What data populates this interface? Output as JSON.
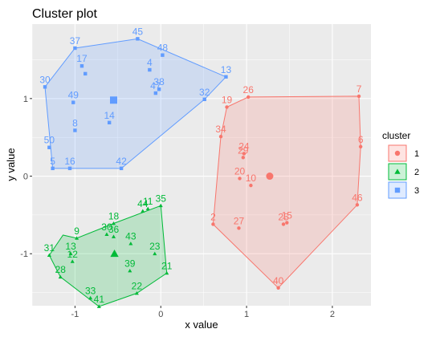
{
  "chart_data": {
    "type": "scatter",
    "title": "Cluster plot",
    "xlabel": "x value",
    "ylabel": "y value",
    "xlim": [
      -1.5,
      2.45
    ],
    "ylim": [
      -1.67,
      1.96
    ],
    "x_ticks": [
      -1,
      0,
      1,
      2
    ],
    "y_ticks": [
      -1,
      0,
      1
    ],
    "grid": true,
    "legend": {
      "title": "cluster",
      "placement": "right",
      "entries": [
        {
          "label": "1",
          "color": "#F8766D",
          "shape": "circle"
        },
        {
          "label": "2",
          "color": "#00BA38",
          "shape": "triangle"
        },
        {
          "label": "3",
          "color": "#619CFF",
          "shape": "square"
        }
      ]
    },
    "clusters": [
      {
        "name": "1",
        "color": "#F8766D",
        "shape": "circle",
        "centroid": [
          1.27,
          0.0
        ],
        "hull": [
          [
            0.77,
            0.89
          ],
          [
            1.02,
            1.02
          ],
          [
            2.31,
            1.03
          ],
          [
            2.33,
            0.38
          ],
          [
            2.29,
            -0.37
          ],
          [
            1.37,
            -1.44
          ],
          [
            0.61,
            -0.62
          ],
          [
            0.7,
            0.51
          ]
        ],
        "points": [
          {
            "label": "2",
            "x": 0.61,
            "y": -0.62
          },
          {
            "label": "6",
            "x": 2.33,
            "y": 0.38
          },
          {
            "label": "7",
            "x": 2.31,
            "y": 1.03
          },
          {
            "label": "10",
            "x": 1.05,
            "y": -0.12
          },
          {
            "label": "15",
            "x": 1.47,
            "y": -0.6
          },
          {
            "label": "19",
            "x": 0.77,
            "y": 0.89
          },
          {
            "label": "20",
            "x": 0.92,
            "y": -0.03
          },
          {
            "label": "24",
            "x": 0.97,
            "y": 0.29
          },
          {
            "label": "25",
            "x": 1.43,
            "y": -0.62
          },
          {
            "label": "26",
            "x": 1.02,
            "y": 1.02
          },
          {
            "label": "27",
            "x": 0.91,
            "y": -0.67
          },
          {
            "label": "29",
            "x": 0.96,
            "y": 0.24
          },
          {
            "label": "34",
            "x": 0.7,
            "y": 0.51
          },
          {
            "label": "40",
            "x": 1.37,
            "y": -1.44
          },
          {
            "label": "46",
            "x": 2.29,
            "y": -0.37
          }
        ]
      },
      {
        "name": "2",
        "color": "#00BA38",
        "shape": "triangle",
        "centroid": [
          -0.54,
          -1.0
        ],
        "hull": [
          [
            -1.3,
            -1.02
          ],
          [
            -1.14,
            -0.76
          ],
          [
            -0.98,
            -0.8
          ],
          [
            -0.55,
            -0.61
          ],
          [
            0.0,
            -0.38
          ],
          [
            0.07,
            -1.25
          ],
          [
            -0.28,
            -1.51
          ],
          [
            -0.72,
            -1.68
          ],
          [
            -1.17,
            -1.3
          ]
        ],
        "points": [
          {
            "label": "9",
            "x": -0.98,
            "y": -0.8
          },
          {
            "label": "11",
            "x": -0.15,
            "y": -0.42
          },
          {
            "label": "12",
            "x": -1.03,
            "y": -1.1
          },
          {
            "label": "13",
            "x": -1.05,
            "y": -1.0
          },
          {
            "label": "18",
            "x": -0.55,
            "y": -0.61
          },
          {
            "label": "21",
            "x": 0.07,
            "y": -1.25
          },
          {
            "label": "22",
            "x": -0.28,
            "y": -1.51
          },
          {
            "label": "23",
            "x": -0.07,
            "y": -1.0
          },
          {
            "label": "28",
            "x": -1.17,
            "y": -1.3
          },
          {
            "label": "30",
            "x": -0.63,
            "y": -0.75
          },
          {
            "label": "31",
            "x": -1.3,
            "y": -1.02
          },
          {
            "label": "33",
            "x": -0.82,
            "y": -1.57
          },
          {
            "label": "35",
            "x": 0.0,
            "y": -0.38
          },
          {
            "label": "36",
            "x": -0.55,
            "y": -0.78
          },
          {
            "label": "39",
            "x": -0.36,
            "y": -1.22
          },
          {
            "label": "41",
            "x": -0.72,
            "y": -1.68
          },
          {
            "label": "43",
            "x": -0.35,
            "y": -0.87
          },
          {
            "label": "44",
            "x": -0.21,
            "y": -0.45
          }
        ]
      },
      {
        "name": "3",
        "color": "#619CFF",
        "shape": "square",
        "centroid": [
          -0.55,
          0.98
        ],
        "hull": [
          [
            -1.35,
            1.15
          ],
          [
            -1.0,
            1.65
          ],
          [
            -0.27,
            1.77
          ],
          [
            0.76,
            1.28
          ],
          [
            0.51,
            0.99
          ],
          [
            -0.46,
            0.1
          ],
          [
            -1.26,
            0.1
          ]
        ],
        "points": [
          {
            "label": "4",
            "x": -0.13,
            "y": 1.37
          },
          {
            "label": "5",
            "x": -1.26,
            "y": 0.1
          },
          {
            "label": "8",
            "x": -1.0,
            "y": 0.59
          },
          {
            "label": "13",
            "x": 0.76,
            "y": 1.28
          },
          {
            "label": "14",
            "x": -0.6,
            "y": 0.69
          },
          {
            "label": "16",
            "x": -1.06,
            "y": 0.1
          },
          {
            "label": "17",
            "x": -0.92,
            "y": 1.42
          },
          {
            "label": "30",
            "x": -1.35,
            "y": 1.15
          },
          {
            "label": "32",
            "x": 0.51,
            "y": 0.99
          },
          {
            "label": "37",
            "x": -1.0,
            "y": 1.65
          },
          {
            "label": "38",
            "x": -0.02,
            "y": 1.12
          },
          {
            "label": "42",
            "x": -0.46,
            "y": 0.1
          },
          {
            "label": "45",
            "x": -0.27,
            "y": 1.77
          },
          {
            "label": "47",
            "x": -0.06,
            "y": 1.07
          },
          {
            "label": "48",
            "x": 0.02,
            "y": 1.56
          },
          {
            "label": "49",
            "x": -1.02,
            "y": 0.95
          },
          {
            "label": "50",
            "x": -1.3,
            "y": 0.37
          },
          {
            "label": "",
            "x": -0.88,
            "y": 1.32
          }
        ]
      }
    ]
  }
}
